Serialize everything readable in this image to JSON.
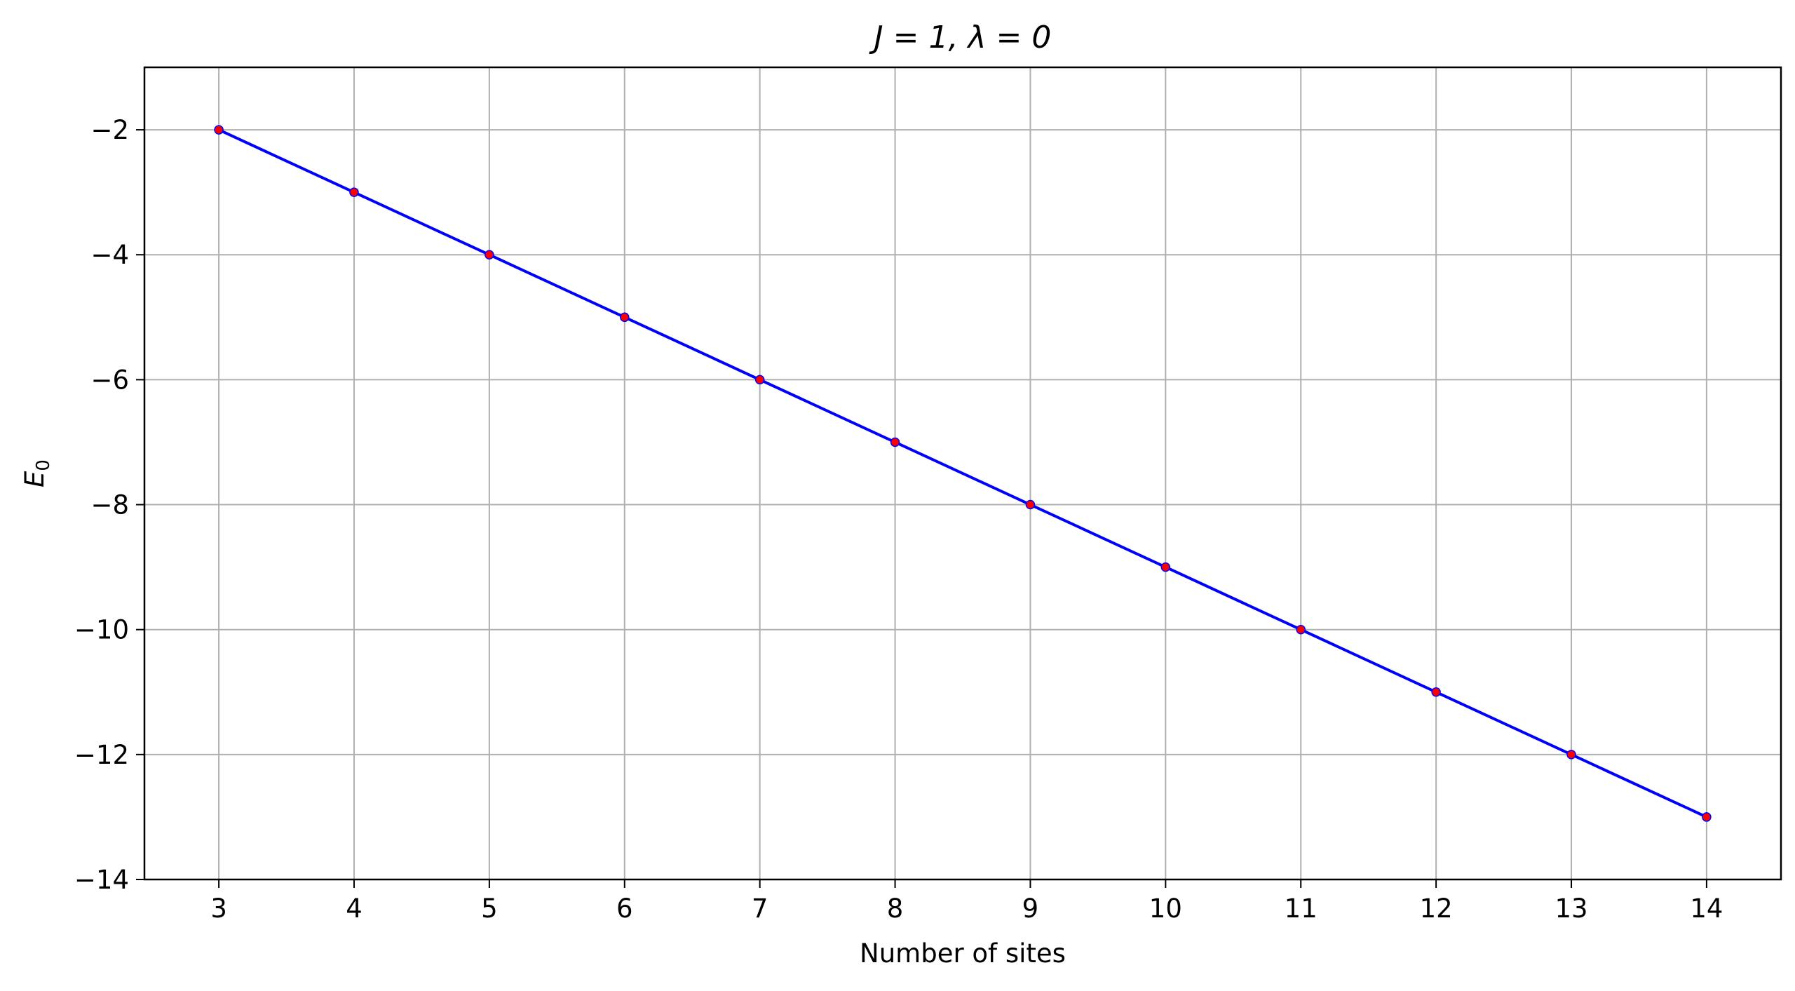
{
  "chart_data": {
    "type": "line",
    "title": "J = 1, λ = 0",
    "xlabel": "Number of sites",
    "ylabel": "E",
    "ylabel_subscript": "0",
    "x": [
      3,
      4,
      5,
      6,
      7,
      8,
      9,
      10,
      11,
      12,
      13,
      14
    ],
    "series": [
      {
        "values": [
          -2,
          -3,
          -4,
          -5,
          -6,
          -7,
          -8,
          -9,
          -10,
          -11,
          -12,
          -13
        ],
        "line_color": "#0000ff",
        "marker_color": "#ff0000"
      }
    ],
    "xlim": [
      2.45,
      14.55
    ],
    "ylim": [
      -14,
      -1
    ],
    "x_ticks": [
      3,
      4,
      5,
      6,
      7,
      8,
      9,
      10,
      11,
      12,
      13,
      14
    ],
    "y_ticks": [
      -14,
      -12,
      -10,
      -8,
      -6,
      -4,
      -2
    ],
    "x_tick_labels": [
      "3",
      "4",
      "5",
      "6",
      "7",
      "8",
      "9",
      "10",
      "11",
      "12",
      "13",
      "14"
    ],
    "y_tick_labels": [
      "−14",
      "−12",
      "−10",
      "−8",
      "−6",
      "−4",
      "−2"
    ],
    "grid": true,
    "grid_color": "#b0b0b0",
    "legend": "none"
  }
}
